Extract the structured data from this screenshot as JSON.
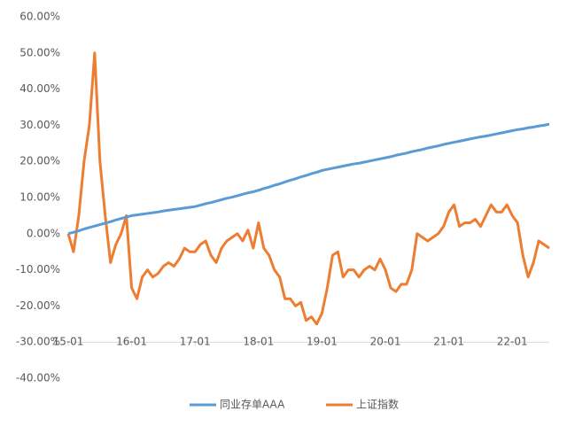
{
  "chart_data": {
    "type": "line",
    "categories": [
      "15-01",
      null,
      null,
      null,
      null,
      null,
      null,
      null,
      null,
      null,
      null,
      null,
      "16-01",
      null,
      null,
      null,
      null,
      null,
      null,
      null,
      null,
      null,
      null,
      null,
      "17-01",
      null,
      null,
      null,
      null,
      null,
      null,
      null,
      null,
      null,
      null,
      null,
      "18-01",
      null,
      null,
      null,
      null,
      null,
      null,
      null,
      null,
      null,
      null,
      null,
      "19-01",
      null,
      null,
      null,
      null,
      null,
      null,
      null,
      null,
      null,
      null,
      null,
      "20-01",
      null,
      null,
      null,
      null,
      null,
      null,
      null,
      null,
      null,
      null,
      null,
      "21-01",
      null,
      null,
      null,
      null,
      null,
      null,
      null,
      null,
      null,
      null,
      null,
      "22-01",
      null,
      null,
      null,
      null,
      null,
      null,
      null
    ],
    "series": [
      {
        "name": "同业存单AAA",
        "color": "#5b9bd5",
        "values": [
          0,
          0.4,
          0.8,
          1.3,
          1.7,
          2.1,
          2.5,
          2.9,
          3.3,
          3.8,
          4.2,
          4.6,
          5,
          5.2,
          5.4,
          5.6,
          5.8,
          6.0,
          6.3,
          6.5,
          6.7,
          6.9,
          7.1,
          7.3,
          7.5,
          7.9,
          8.3,
          8.6,
          9.0,
          9.4,
          9.8,
          10.1,
          10.5,
          10.9,
          11.3,
          11.6,
          12,
          12.5,
          12.9,
          13.4,
          13.8,
          14.3,
          14.8,
          15.2,
          15.7,
          16.1,
          16.6,
          17.0,
          17.5,
          17.8,
          18.1,
          18.4,
          18.7,
          19.0,
          19.3,
          19.5,
          19.8,
          20.1,
          20.4,
          20.7,
          21,
          21.3,
          21.7,
          22.0,
          22.3,
          22.7,
          23.0,
          23.3,
          23.7,
          24.0,
          24.3,
          24.7,
          25,
          25.3,
          25.6,
          25.9,
          26.2,
          26.5,
          26.8,
          27.0,
          27.3,
          27.6,
          27.9,
          28.2,
          28.5,
          28.8,
          29.0,
          29.3,
          29.5,
          29.8,
          30.0,
          30.3
        ]
      },
      {
        "name": "上证指数",
        "color": "#ed7d31",
        "values": [
          0,
          -5,
          5,
          20,
          30,
          50,
          20,
          5,
          -8,
          -3,
          0,
          5,
          -15,
          -18,
          -12,
          -10,
          -12,
          -11,
          -9,
          -8,
          -9,
          -7,
          -4,
          -5,
          -5,
          -3,
          -2,
          -6,
          -8,
          -4,
          -2,
          -1,
          0,
          -2,
          1,
          -4,
          3,
          -4,
          -6,
          -10,
          -12,
          -18,
          -18,
          -20,
          -19,
          -24,
          -23,
          -25,
          -22,
          -15,
          -6,
          -5,
          -12,
          -10,
          -10,
          -12,
          -10,
          -9,
          -10,
          -7,
          -10,
          -15,
          -16,
          -14,
          -14,
          -10,
          0,
          -1,
          -2,
          -1,
          0,
          2,
          6,
          8,
          2,
          3,
          3,
          4,
          2,
          5,
          8,
          6,
          6,
          8,
          5,
          3,
          -6,
          -12,
          -8,
          -2,
          -3,
          -4
        ]
      }
    ],
    "ylim": [
      -40,
      60
    ],
    "yticks": [
      {
        "value": 60,
        "label": "60.00%"
      },
      {
        "value": 50,
        "label": "50.00%"
      },
      {
        "value": 40,
        "label": "40.00%"
      },
      {
        "value": 30,
        "label": "30.00%"
      },
      {
        "value": 20,
        "label": "20.00%"
      },
      {
        "value": 10,
        "label": "10.00%"
      },
      {
        "value": 0,
        "label": "0.00%"
      },
      {
        "value": -10,
        "label": "-10.00%"
      },
      {
        "value": -20,
        "label": "-20.00%"
      },
      {
        "value": -30,
        "label": "-30.00%"
      },
      {
        "value": -40,
        "label": "-40.00%"
      }
    ],
    "legend": "bottom"
  }
}
